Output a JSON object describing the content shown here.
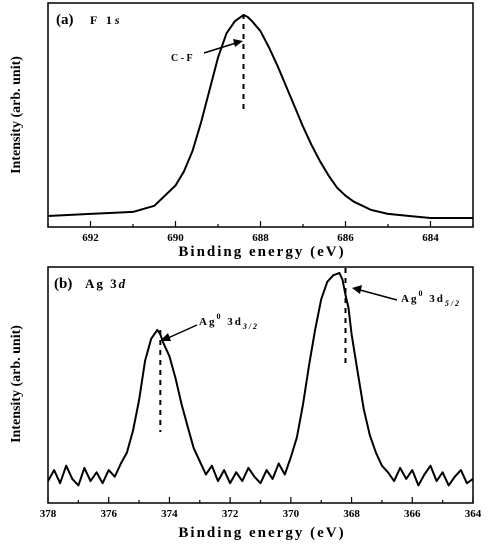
{
  "chart_data": [
    {
      "type": "line",
      "panel_label": "(a)",
      "title": "F 1s",
      "xlabel": "Binding energy (eV)",
      "ylabel": "Intensity (arb. unit)",
      "xlim": [
        693,
        683
      ],
      "x_reversed": true,
      "y_ticks_shown": false,
      "xticks": [
        692,
        690,
        688,
        686,
        684
      ],
      "series": [
        {
          "x": [
            693.0,
            692.0,
            691.0,
            690.5,
            690.0,
            689.8,
            689.6,
            689.4,
            689.2,
            689.0,
            688.8,
            688.6,
            688.4,
            688.3,
            688.2,
            688.0,
            687.8,
            687.6,
            687.4,
            687.2,
            687.0,
            686.8,
            686.6,
            686.4,
            686.2,
            686.0,
            685.8,
            685.6,
            685.4,
            685.0,
            684.5,
            684.0,
            683.0
          ],
          "values": [
            0.01,
            0.02,
            0.03,
            0.06,
            0.16,
            0.23,
            0.33,
            0.47,
            0.63,
            0.79,
            0.91,
            0.97,
            1.0,
            0.99,
            0.97,
            0.92,
            0.84,
            0.75,
            0.65,
            0.55,
            0.45,
            0.36,
            0.28,
            0.21,
            0.15,
            0.11,
            0.08,
            0.06,
            0.04,
            0.02,
            0.01,
            0.0,
            0.0
          ]
        }
      ],
      "annotations": [
        {
          "text": "C - F",
          "x": 688.4
        }
      ]
    },
    {
      "type": "line",
      "panel_label": "(b)",
      "title": "Ag 3d",
      "xlabel": "Binding energy (eV)",
      "ylabel": "Intensity (arb. unit)",
      "xlim": [
        378,
        364
      ],
      "x_reversed": true,
      "y_ticks_shown": false,
      "xticks": [
        378,
        376,
        374,
        372,
        370,
        368,
        366,
        364
      ],
      "series": [
        {
          "x": [
            378.0,
            377.8,
            377.6,
            377.4,
            377.2,
            377.0,
            376.8,
            376.6,
            376.4,
            376.2,
            376.0,
            375.8,
            375.6,
            375.4,
            375.2,
            375.0,
            374.8,
            374.6,
            374.4,
            374.3,
            374.2,
            374.0,
            373.8,
            373.6,
            373.4,
            373.2,
            373.0,
            372.8,
            372.6,
            372.4,
            372.2,
            372.0,
            371.8,
            371.6,
            371.4,
            371.2,
            371.0,
            370.8,
            370.6,
            370.4,
            370.2,
            370.0,
            369.8,
            369.6,
            369.4,
            369.2,
            369.0,
            368.8,
            368.6,
            368.4,
            368.3,
            368.2,
            368.1,
            368.0,
            367.8,
            367.6,
            367.4,
            367.2,
            367.0,
            366.8,
            366.6,
            366.4,
            366.2,
            366.0,
            365.8,
            365.6,
            365.4,
            365.2,
            365.0,
            364.8,
            364.6,
            364.4,
            364.2,
            364.0
          ],
          "values": [
            0.05,
            0.1,
            0.04,
            0.12,
            0.06,
            0.03,
            0.11,
            0.05,
            0.09,
            0.04,
            0.1,
            0.07,
            0.13,
            0.18,
            0.28,
            0.42,
            0.6,
            0.7,
            0.74,
            0.72,
            0.68,
            0.62,
            0.52,
            0.4,
            0.3,
            0.2,
            0.14,
            0.08,
            0.12,
            0.05,
            0.1,
            0.04,
            0.09,
            0.05,
            0.11,
            0.07,
            0.04,
            0.1,
            0.06,
            0.13,
            0.08,
            0.16,
            0.25,
            0.4,
            0.58,
            0.74,
            0.88,
            0.96,
            0.99,
            1.0,
            0.97,
            0.9,
            0.84,
            0.72,
            0.55,
            0.38,
            0.26,
            0.18,
            0.12,
            0.09,
            0.05,
            0.11,
            0.06,
            0.1,
            0.03,
            0.08,
            0.12,
            0.05,
            0.09,
            0.03,
            0.07,
            0.1,
            0.04,
            0.06
          ]
        }
      ],
      "annotations": [
        {
          "text": "Ag",
          "sup": "0",
          "main": " 3d",
          "sub": "3/2",
          "x": 374.3
        },
        {
          "text": "Ag",
          "sup": "0",
          "main": " 3d",
          "sub": "5/2",
          "x": 368.2
        }
      ]
    }
  ]
}
